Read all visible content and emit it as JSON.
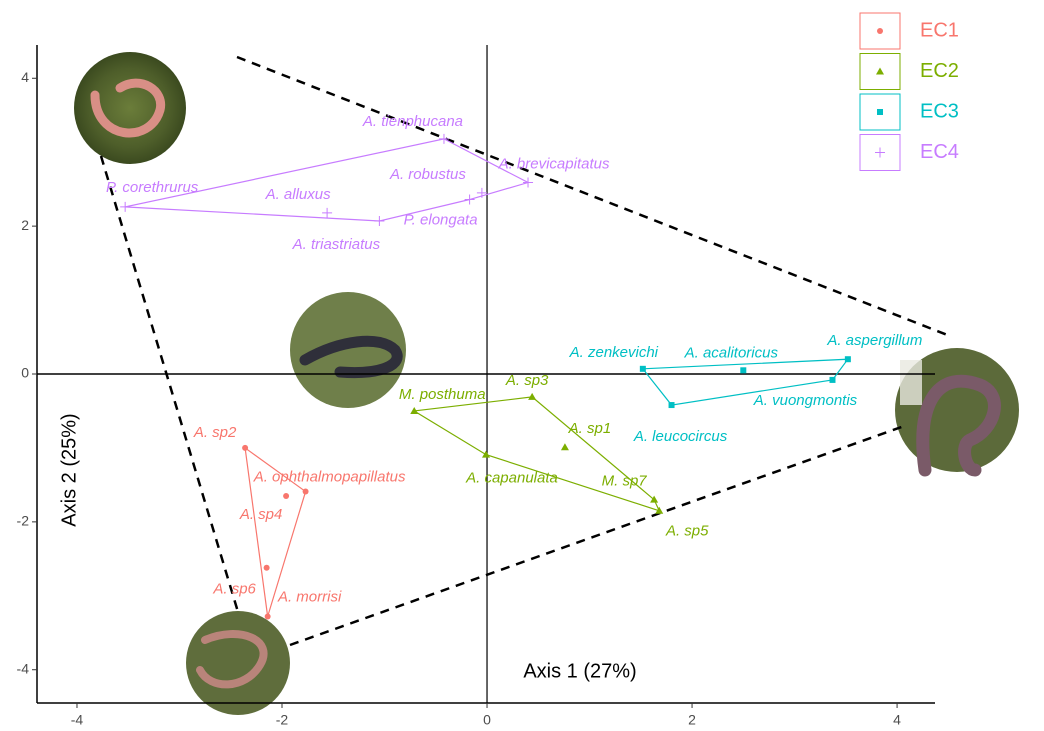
{
  "chart_data": {
    "type": "scatter",
    "x_label": "Axis 1 (27%)",
    "y_label": "Axis 2 (25%)",
    "xlim": [
      -4.39,
      4.37
    ],
    "ylim": [
      -4.45,
      4.45
    ],
    "xticks": [
      -4,
      -2,
      0,
      2,
      4
    ],
    "yticks": [
      -4,
      -2,
      0,
      2,
      4
    ],
    "zero_lines": true,
    "hulls": true,
    "legend": "top-right",
    "series": [
      {
        "name": "EC1",
        "color": "#F8766D",
        "marker": "circle",
        "labels": [
          "A. sp2",
          "A. ophthalmopapillatus",
          "A. sp4",
          "A. sp6",
          "A. morrisi"
        ],
        "x": [
          -2.36,
          -1.77,
          -1.96,
          -2.15,
          -2.14
        ],
        "values": [
          -1.0,
          -1.59,
          -1.65,
          -2.62,
          -3.28
        ]
      },
      {
        "name": "EC2",
        "color": "#7CAE00",
        "marker": "triangle",
        "labels": [
          "M. posthuma",
          "A. sp3",
          "A. sp1",
          "A. capanulata",
          "M. sp7",
          "A. sp5"
        ],
        "x": [
          -0.71,
          0.44,
          0.76,
          -0.01,
          1.63,
          1.68
        ],
        "values": [
          -0.5,
          -0.31,
          -0.99,
          -1.09,
          -1.7,
          -1.85
        ]
      },
      {
        "name": "EC3",
        "color": "#00BFC4",
        "marker": "square",
        "labels": [
          "A. zenkevichi",
          "A. acalitoricus",
          "A. aspergillum",
          "A. vuongmontis",
          "A. leucocircus"
        ],
        "x": [
          1.52,
          2.5,
          3.52,
          3.37,
          1.8
        ],
        "values": [
          0.07,
          0.05,
          0.2,
          -0.08,
          -0.42
        ]
      },
      {
        "name": "EC4",
        "color": "#C77CFF",
        "marker": "plus",
        "labels": [
          "P. corethrurus",
          "A. tienphucana",
          "A. brevicapitatus",
          "A. robustus",
          "P. elongata",
          "A. alluxus",
          "A. triastriatus"
        ],
        "x": [
          -3.53,
          -0.42,
          0.4,
          -0.05,
          -0.17,
          -1.56,
          -1.05
        ],
        "values": [
          2.26,
          3.18,
          2.59,
          2.45,
          2.36,
          2.18,
          2.07
        ]
      }
    ]
  }
}
